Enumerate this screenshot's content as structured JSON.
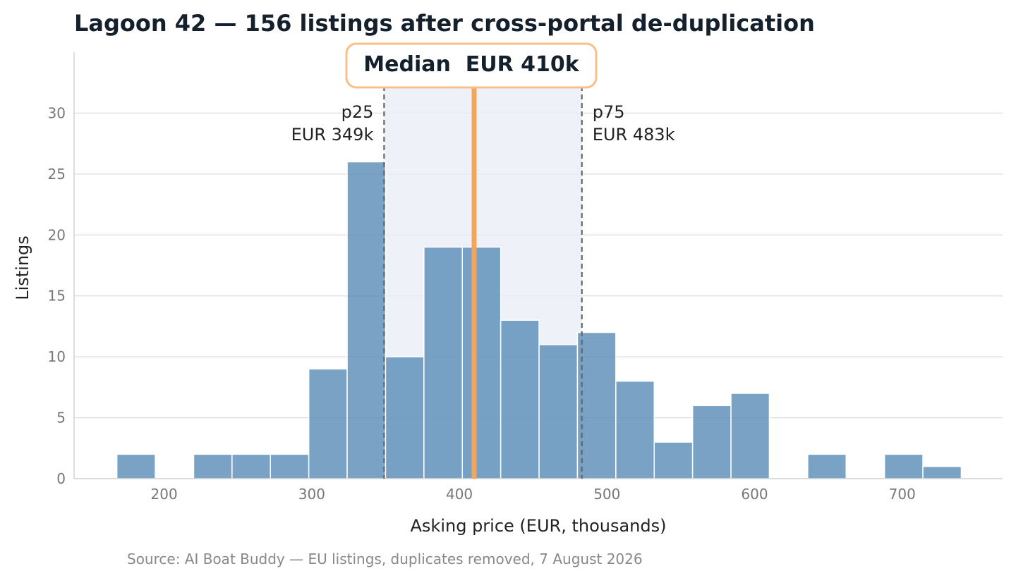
{
  "chart_data": {
    "type": "bar",
    "title": "Lagoon 42 — 156 listings after cross-portal de-duplication",
    "xlabel": "Asking price (EUR, thousands)",
    "ylabel": "Listings",
    "source": "Source: AI Boat Buddy — EU listings, duplicates removed, 7 August 2026",
    "xlim": [
      139,
      768
    ],
    "ylim": [
      0,
      35
    ],
    "x_ticks": [
      "200",
      "300",
      "400",
      "500",
      "600",
      "700"
    ],
    "y_ticks": [
      "0",
      "5",
      "10",
      "15",
      "20",
      "25",
      "30"
    ],
    "grid": "horizontal",
    "bin_width": 26,
    "bins": [
      {
        "x0": 168,
        "x1": 194,
        "count": 2
      },
      {
        "x0": 194,
        "x1": 220,
        "count": 0
      },
      {
        "x0": 220,
        "x1": 246,
        "count": 2
      },
      {
        "x0": 246,
        "x1": 272,
        "count": 2
      },
      {
        "x0": 272,
        "x1": 298,
        "count": 2
      },
      {
        "x0": 298,
        "x1": 324,
        "count": 9
      },
      {
        "x0": 324,
        "x1": 350,
        "count": 26
      },
      {
        "x0": 350,
        "x1": 376,
        "count": 10
      },
      {
        "x0": 376,
        "x1": 402,
        "count": 19
      },
      {
        "x0": 402,
        "x1": 428,
        "count": 19
      },
      {
        "x0": 428,
        "x1": 454,
        "count": 13
      },
      {
        "x0": 454,
        "x1": 480,
        "count": 11
      },
      {
        "x0": 480,
        "x1": 506,
        "count": 12
      },
      {
        "x0": 506,
        "x1": 532,
        "count": 8
      },
      {
        "x0": 532,
        "x1": 558,
        "count": 3
      },
      {
        "x0": 558,
        "x1": 584,
        "count": 6
      },
      {
        "x0": 584,
        "x1": 610,
        "count": 7
      },
      {
        "x0": 610,
        "x1": 636,
        "count": 0
      },
      {
        "x0": 636,
        "x1": 662,
        "count": 2
      },
      {
        "x0": 662,
        "x1": 688,
        "count": 0
      },
      {
        "x0": 688,
        "x1": 714,
        "count": 2
      },
      {
        "x0": 714,
        "x1": 740,
        "count": 1
      }
    ],
    "p25": {
      "value": 349,
      "label": "p25",
      "value_label": "EUR 349k"
    },
    "p75": {
      "value": 483,
      "label": "p75",
      "value_label": "EUR 483k"
    },
    "median": {
      "value": 410,
      "label": "Median  EUR 410k"
    },
    "colors": {
      "bar": "#5b8db8",
      "bar_edge": "#ffffff",
      "iqr_band": "#e8eef5",
      "median_line": "#f5a65b",
      "median_box_border": "#f7c08a",
      "percentile_line": "#666666",
      "grid": "#dddddd",
      "tick_text": "#777777",
      "title_text": "#14202b",
      "source_text": "#888888"
    }
  }
}
